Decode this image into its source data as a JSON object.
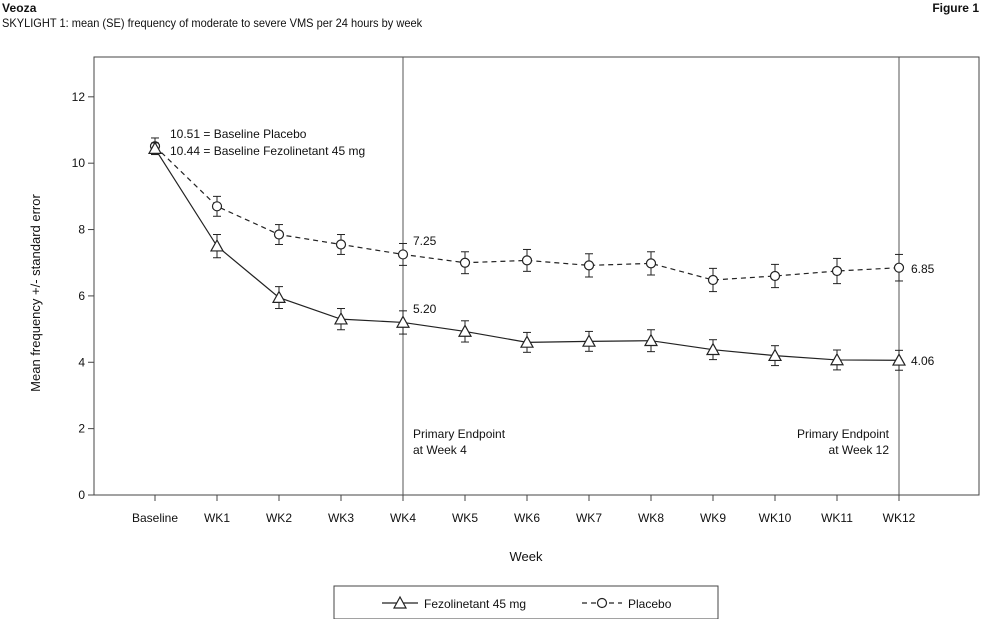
{
  "header": {
    "brand": "Veoza",
    "subtitle": "SKYLIGHT 1: mean (SE) frequency of moderate to severe VMS per 24 hours by week",
    "figure_label": "Figure 1"
  },
  "chart_data": {
    "type": "line",
    "title": "SKYLIGHT 1: mean (SE) frequency of moderate to severe VMS per 24 hours by week",
    "xlabel": "Week",
    "ylabel": "Mean frequency +/- standard error",
    "ylim": [
      0,
      13
    ],
    "yticks": [
      0,
      2,
      4,
      6,
      8,
      10,
      12
    ],
    "categories": [
      "Baseline",
      "WK1",
      "WK2",
      "WK3",
      "WK4",
      "WK5",
      "WK6",
      "WK7",
      "WK8",
      "WK9",
      "WK10",
      "WK11",
      "WK12"
    ],
    "grid": false,
    "legend_position": "bottom",
    "series": [
      {
        "name": "Fezolinetant 45 mg",
        "line_style": "solid",
        "marker": "triangle",
        "values": [
          10.44,
          7.5,
          5.95,
          5.3,
          5.2,
          4.93,
          4.6,
          4.63,
          4.65,
          4.38,
          4.2,
          4.07,
          4.06
        ],
        "se": [
          0.17,
          0.35,
          0.33,
          0.32,
          0.35,
          0.32,
          0.3,
          0.3,
          0.33,
          0.3,
          0.3,
          0.3,
          0.3
        ]
      },
      {
        "name": "Placebo",
        "line_style": "dashed",
        "marker": "circle",
        "values": [
          10.51,
          8.7,
          7.85,
          7.55,
          7.25,
          7.0,
          7.07,
          6.92,
          6.98,
          6.48,
          6.6,
          6.75,
          6.85
        ],
        "se": [
          0.25,
          0.3,
          0.3,
          0.3,
          0.33,
          0.33,
          0.33,
          0.35,
          0.35,
          0.35,
          0.35,
          0.38,
          0.4
        ]
      }
    ],
    "reference_lines": [
      {
        "category": "WK4",
        "label_lines": [
          "Primary Endpoint",
          "at Week 4"
        ]
      },
      {
        "category": "WK12",
        "label_lines": [
          "Primary Endpoint",
          "at Week 12"
        ]
      }
    ],
    "annotations": {
      "baseline_placebo": "10.51 = Baseline Placebo",
      "baseline_fezolinetant": "10.44 = Baseline Fezolinetant 45 mg",
      "wk4_placebo": "7.25",
      "wk4_fezolinetant": "5.20",
      "wk12_placebo": "6.85",
      "wk12_fezolinetant": "4.06"
    }
  }
}
